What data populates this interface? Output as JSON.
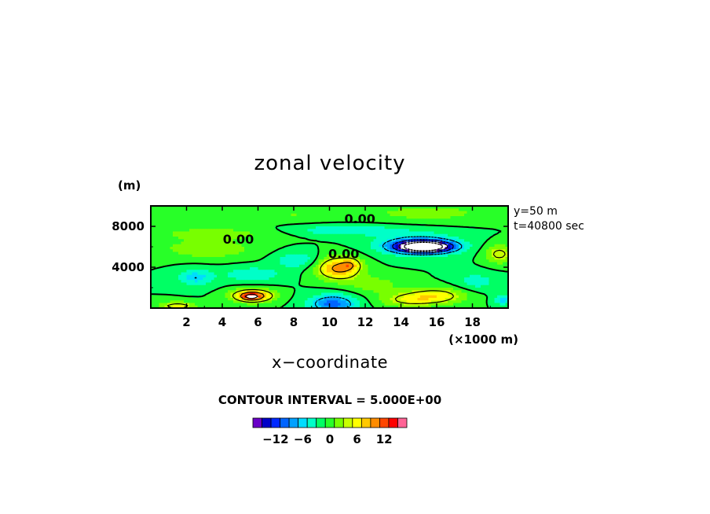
{
  "chart_data": {
    "type": "heatmap",
    "title": "zonal velocity",
    "xlabel": "x−coordinate",
    "ylabel": "",
    "x_unit": "(×1000 m)",
    "y_unit": "(m)",
    "x_range": [
      0,
      20
    ],
    "y_range": [
      0,
      10000
    ],
    "x_ticks": [
      2,
      4,
      6,
      8,
      10,
      12,
      14,
      16,
      18
    ],
    "y_ticks": [
      4000,
      8000
    ],
    "info_lines": [
      "y=50 m",
      "t=40800 sec"
    ],
    "contour_interval_text": "CONTOUR INTERVAL = 5.000E+00",
    "contour_labels": [
      {
        "text": "0.00",
        "x": 11.7,
        "y": 8300
      },
      {
        "text": "0.00",
        "x": 4.9,
        "y": 6300
      },
      {
        "text": "0.00",
        "x": 10.8,
        "y": 4900
      }
    ],
    "colorbar": {
      "min": -16,
      "max": 16,
      "step": 2,
      "tick_labels": [
        "−12",
        "−6",
        "0",
        "6",
        "12"
      ],
      "tick_values": [
        -12,
        -6,
        0,
        6,
        12
      ],
      "colors": [
        "#6a00c8",
        "#0000c8",
        "#0028ff",
        "#0064ff",
        "#00a0ff",
        "#00dcff",
        "#00ffc8",
        "#00ff64",
        "#28ff28",
        "#78ff00",
        "#c8ff00",
        "#ffff00",
        "#ffc800",
        "#ff8c00",
        "#ff4600",
        "#ff0000",
        "#ff6496"
      ]
    },
    "features": [
      {
        "x": 15.3,
        "y": 6000,
        "sx": 1.4,
        "sy": 500,
        "amp": -26
      },
      {
        "x": 15.0,
        "y": 6200,
        "sx": 2.2,
        "sy": 1000,
        "amp": -8
      },
      {
        "x": 10.5,
        "y": 3900,
        "sx": 1.2,
        "sy": 1100,
        "amp": 11
      },
      {
        "x": 11.2,
        "y": 4300,
        "sx": 0.5,
        "sy": 600,
        "amp": 4
      },
      {
        "x": 5.7,
        "y": 1200,
        "sx": 1.1,
        "sy": 600,
        "amp": 14
      },
      {
        "x": 5.6,
        "y": 1100,
        "sx": 0.4,
        "sy": 250,
        "amp": 6
      },
      {
        "x": 10.2,
        "y": 400,
        "sx": 1.3,
        "sy": 900,
        "amp": -9
      },
      {
        "x": 2.5,
        "y": 3000,
        "sx": 1.0,
        "sy": 800,
        "amp": -5
      },
      {
        "x": 5.7,
        "y": 3300,
        "sx": 1.6,
        "sy": 700,
        "amp": -4
      },
      {
        "x": 8.2,
        "y": 4700,
        "sx": 1.2,
        "sy": 800,
        "amp": -4
      },
      {
        "x": 16.0,
        "y": 1200,
        "sx": 1.6,
        "sy": 800,
        "amp": 7
      },
      {
        "x": 14.3,
        "y": 800,
        "sx": 1.5,
        "sy": 700,
        "amp": 5
      },
      {
        "x": 19.5,
        "y": 5300,
        "sx": 0.8,
        "sy": 900,
        "amp": 6
      },
      {
        "x": 19.7,
        "y": 800,
        "sx": 0.5,
        "sy": 500,
        "amp": -5
      },
      {
        "x": 1.5,
        "y": 200,
        "sx": 1.0,
        "sy": 400,
        "amp": 7
      },
      {
        "x": 3.5,
        "y": 7300,
        "sx": 3.5,
        "sy": 600,
        "amp": 3
      },
      {
        "x": 11.0,
        "y": 7600,
        "sx": 3.0,
        "sy": 500,
        "amp": -4
      },
      {
        "x": 3.2,
        "y": 5800,
        "sx": 2.5,
        "sy": 900,
        "amp": 4
      },
      {
        "x": 15.5,
        "y": 9300,
        "sx": 3.5,
        "sy": 800,
        "amp": 3
      },
      {
        "x": 8.0,
        "y": 9200,
        "sx": 2.5,
        "sy": 700,
        "amp": 2
      },
      {
        "x": 12.5,
        "y": 2300,
        "sx": 1.5,
        "sy": 900,
        "amp": 3
      },
      {
        "x": 18.2,
        "y": 2600,
        "sx": 1.2,
        "sy": 900,
        "amp": -3
      }
    ]
  }
}
